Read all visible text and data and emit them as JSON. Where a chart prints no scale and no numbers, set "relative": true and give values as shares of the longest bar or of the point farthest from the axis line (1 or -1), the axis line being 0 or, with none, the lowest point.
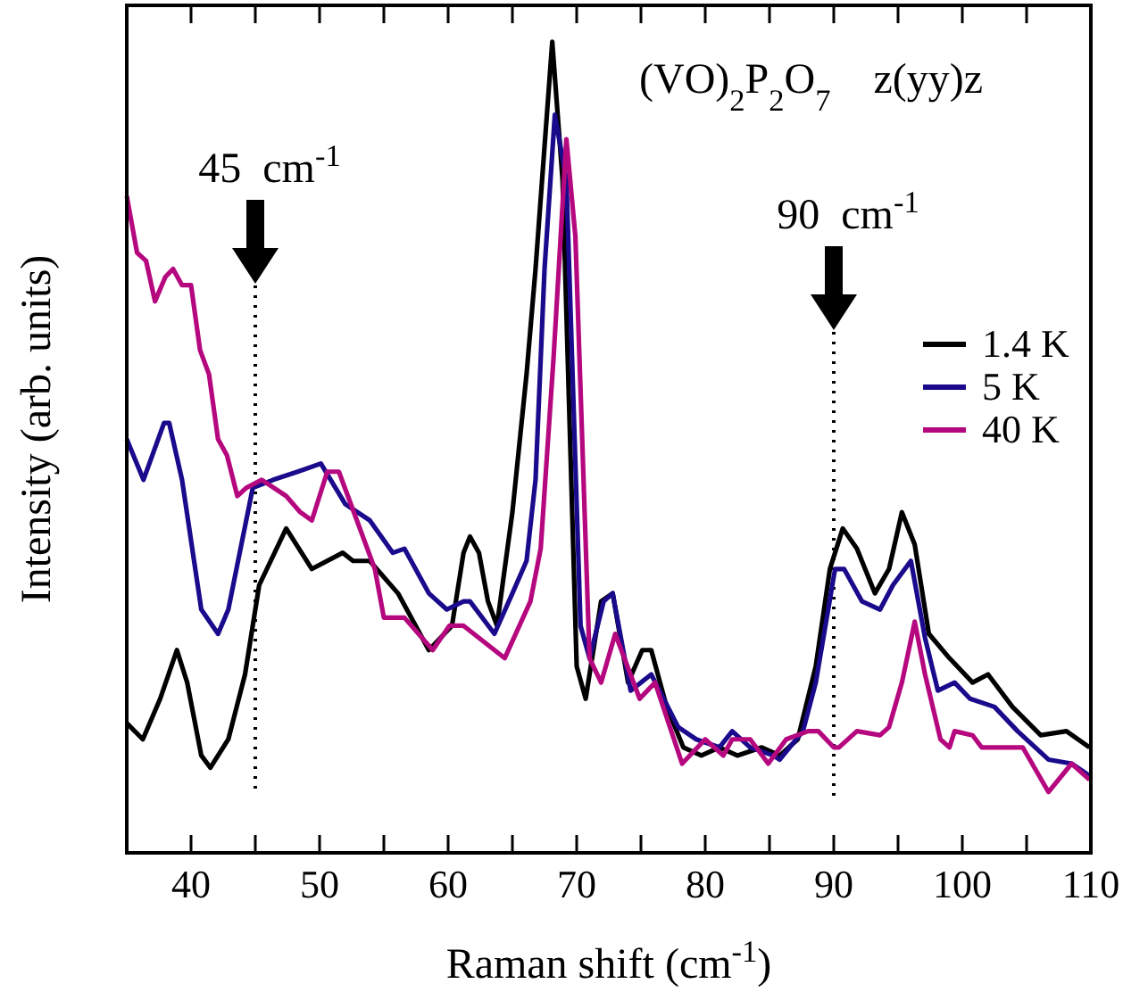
{
  "chart_data": {
    "type": "line",
    "relative": true,
    "xlabel": "Raman shift (cm$^{-1}$)",
    "ylabel": "Intensity (arb. units)",
    "xlim": [
      35,
      110
    ],
    "xticks": [
      {
        "value": 35,
        "label": null
      },
      40,
      {
        "value": 45,
        "label": null
      },
      50,
      {
        "value": 55,
        "label": null
      },
      60,
      {
        "value": 65,
        "label": null
      },
      70,
      {
        "value": 75,
        "label": null
      },
      80,
      {
        "value": 85,
        "label": null
      },
      90,
      {
        "value": 95,
        "label": null
      },
      100,
      {
        "value": 105,
        "label": null
      },
      110
    ],
    "legend": "right",
    "grid": false,
    "marker": "none",
    "line_style": "solid",
    "annotations": [
      "(VO)$_{2}$P$_{2}$O$_{7}$    z(yy)z"
    ],
    "ref_lines": [
      {
        "axis": "x",
        "value": 45,
        "label": "45  cm$^{-1}$",
        "color": "#000000",
        "line_style": "dotted"
      },
      {
        "axis": "x",
        "value": 90,
        "label": "90  cm$^{-1}$",
        "color": "#000000",
        "line_style": "dotted"
      }
    ],
    "series": [
      {
        "name": "1.4 K",
        "color": "#000000",
        "x": [
          35,
          36.25,
          37.6,
          38.9,
          39.7,
          40.8,
          41.5,
          42.9,
          44.2,
          45.3,
          47.4,
          49.4,
          51.8,
          52.6,
          53.9,
          56.1,
          58.5,
          60.3,
          61.2,
          61.7,
          62.4,
          63.1,
          63.8,
          65,
          66.1,
          66.8,
          68.1,
          68.9,
          70,
          70.7,
          71.9,
          72.8,
          74,
          75.1,
          75.8,
          77,
          78.3,
          79.7,
          81.1,
          82.5,
          84.4,
          85.8,
          87.2,
          88.6,
          89.7,
          90.7,
          91.8,
          93.2,
          94.3,
          95.3,
          96.3,
          97.4,
          99,
          100.8,
          102,
          103.9,
          106.1,
          108.1,
          109.9
        ],
        "values": [
          0.16,
          0.14,
          0.19,
          0.25,
          0.21,
          0.12,
          0.105,
          0.14,
          0.22,
          0.33,
          0.4,
          0.35,
          0.37,
          0.36,
          0.36,
          0.32,
          0.25,
          0.28,
          0.37,
          0.39,
          0.37,
          0.31,
          0.28,
          0.42,
          0.59,
          0.72,
          1,
          0.83,
          0.23,
          0.19,
          0.31,
          0.32,
          0.21,
          0.25,
          0.25,
          0.18,
          0.13,
          0.12,
          0.13,
          0.12,
          0.13,
          0.12,
          0.14,
          0.23,
          0.35,
          0.4,
          0.375,
          0.32,
          0.35,
          0.42,
          0.38,
          0.27,
          0.24,
          0.21,
          0.22,
          0.18,
          0.145,
          0.15,
          0.13
        ]
      },
      {
        "name": "5 K",
        "color": "#1a0a8c",
        "x": [
          35,
          36.3,
          37.9,
          38.3,
          39.3,
          40.8,
          42.1,
          42.9,
          44.8,
          46.4,
          48.3,
          50.1,
          52,
          53.9,
          55.7,
          56.6,
          58.5,
          59.9,
          61.2,
          61.7,
          63.6,
          65,
          66.1,
          66.8,
          67.5,
          68.3,
          69.2,
          70.3,
          71,
          72.1,
          72.8,
          74.2,
          75.8,
          77.9,
          79.3,
          81.1,
          82.1,
          83.5,
          85.3,
          85.8,
          87.6,
          88.6,
          90.1,
          90.8,
          92.2,
          93.6,
          94.6,
          96,
          97.1,
          98.1,
          99.4,
          100.6,
          102.5,
          104.3,
          106.7,
          108.5,
          109.9
        ],
        "values": [
          0.51,
          0.46,
          0.53,
          0.53,
          0.46,
          0.3,
          0.27,
          0.3,
          0.45,
          0.46,
          0.47,
          0.48,
          0.43,
          0.41,
          0.37,
          0.375,
          0.32,
          0.3,
          0.31,
          0.31,
          0.27,
          0.32,
          0.36,
          0.46,
          0.72,
          0.91,
          0.83,
          0.28,
          0.24,
          0.31,
          0.32,
          0.2,
          0.22,
          0.155,
          0.14,
          0.13,
          0.15,
          0.13,
          0.12,
          0.115,
          0.15,
          0.21,
          0.35,
          0.35,
          0.31,
          0.3,
          0.33,
          0.36,
          0.265,
          0.2,
          0.21,
          0.19,
          0.18,
          0.15,
          0.115,
          0.11,
          0.095
        ]
      },
      {
        "name": "40 K",
        "color": "#b5087f",
        "x": [
          35,
          35.8,
          36.5,
          37.2,
          38,
          38.6,
          39.3,
          40,
          40.7,
          41.4,
          42.1,
          42.8,
          43.6,
          44.3,
          45.5,
          47.4,
          48.5,
          49.4,
          50.6,
          51.5,
          52.9,
          54.3,
          55,
          56.6,
          58.8,
          60.1,
          61.2,
          64.4,
          66.4,
          67.2,
          68.2,
          69.2,
          69.9,
          71,
          71.9,
          73,
          74.9,
          76.1,
          78.2,
          80,
          81.4,
          82.1,
          83.5,
          84.9,
          86.3,
          88,
          88.8,
          90,
          90.4,
          91.8,
          93.6,
          94.3,
          95.3,
          96.3,
          97.1,
          98.3,
          99,
          99.4,
          100.8,
          101.5,
          103.3,
          104.7,
          106.7,
          108.5,
          109.9
        ],
        "values": [
          0.81,
          0.74,
          0.73,
          0.68,
          0.71,
          0.72,
          0.7,
          0.7,
          0.62,
          0.59,
          0.51,
          0.49,
          0.44,
          0.45,
          0.46,
          0.44,
          0.42,
          0.41,
          0.47,
          0.47,
          0.41,
          0.35,
          0.29,
          0.29,
          0.25,
          0.28,
          0.28,
          0.24,
          0.31,
          0.375,
          0.61,
          0.88,
          0.76,
          0.24,
          0.21,
          0.27,
          0.19,
          0.21,
          0.11,
          0.14,
          0.12,
          0.14,
          0.14,
          0.11,
          0.14,
          0.15,
          0.15,
          0.13,
          0.13,
          0.15,
          0.145,
          0.155,
          0.21,
          0.285,
          0.22,
          0.14,
          0.13,
          0.15,
          0.145,
          0.13,
          0.13,
          0.13,
          0.075,
          0.11,
          0.09
        ]
      }
    ]
  }
}
